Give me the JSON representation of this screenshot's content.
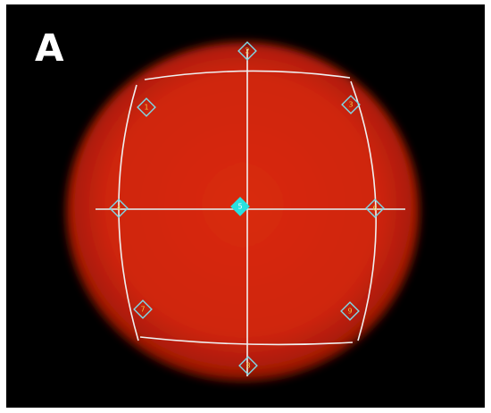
{
  "panel_label": "A",
  "colors": {
    "background": "#000000",
    "field_red": "#d8280c",
    "field_edge": "#5a0a00",
    "grid_line": "#f0f0f0",
    "marker_stroke": "#7fd8e6",
    "marker_label": "#e6c34a",
    "center_marker": "#29e0e0"
  },
  "markers": [
    {
      "id": "1",
      "label": "1"
    },
    {
      "id": "2",
      "label": "2"
    },
    {
      "id": "3",
      "label": "3"
    },
    {
      "id": "4",
      "label": "4"
    },
    {
      "id": "5",
      "label": "5"
    },
    {
      "id": "6",
      "label": "6"
    },
    {
      "id": "7",
      "label": "7"
    },
    {
      "id": "8",
      "label": "8"
    },
    {
      "id": "9",
      "label": "9"
    }
  ]
}
